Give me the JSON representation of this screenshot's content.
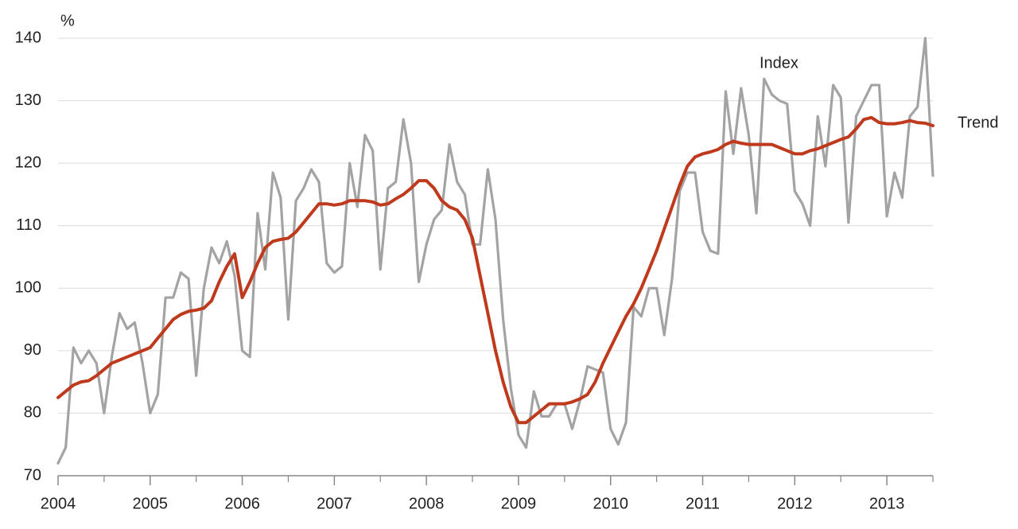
{
  "chart_data": {
    "type": "line",
    "y_unit": "%",
    "x": [
      2004,
      2004.083,
      2004.167,
      2004.25,
      2004.333,
      2004.417,
      2004.5,
      2004.583,
      2004.667,
      2004.75,
      2004.833,
      2004.917,
      2005,
      2005.083,
      2005.167,
      2005.25,
      2005.333,
      2005.417,
      2005.5,
      2005.583,
      2005.667,
      2005.75,
      2005.833,
      2005.917,
      2006,
      2006.083,
      2006.167,
      2006.25,
      2006.333,
      2006.417,
      2006.5,
      2006.583,
      2006.667,
      2006.75,
      2006.833,
      2006.917,
      2007,
      2007.083,
      2007.167,
      2007.25,
      2007.333,
      2007.417,
      2007.5,
      2007.583,
      2007.667,
      2007.75,
      2007.833,
      2007.917,
      2008,
      2008.083,
      2008.167,
      2008.25,
      2008.333,
      2008.417,
      2008.5,
      2008.583,
      2008.667,
      2008.75,
      2008.833,
      2008.917,
      2009,
      2009.083,
      2009.167,
      2009.25,
      2009.333,
      2009.417,
      2009.5,
      2009.583,
      2009.667,
      2009.75,
      2009.833,
      2009.917,
      2010,
      2010.083,
      2010.167,
      2010.25,
      2010.333,
      2010.417,
      2010.5,
      2010.583,
      2010.667,
      2010.75,
      2010.833,
      2010.917,
      2011,
      2011.083,
      2011.167,
      2011.25,
      2011.333,
      2011.417,
      2011.5,
      2011.583,
      2011.667,
      2011.75,
      2011.833,
      2011.917,
      2012,
      2012.083,
      2012.167,
      2012.25,
      2012.333,
      2012.417,
      2012.5,
      2012.583,
      2012.667,
      2012.75,
      2012.833,
      2012.917,
      2013,
      2013.083,
      2013.167,
      2013.25,
      2013.333,
      2013.417,
      2013.5
    ],
    "series": [
      {
        "name": "Index",
        "color": "#a3a3a3",
        "values": [
          72,
          74.5,
          90.5,
          88,
          90,
          88,
          80,
          89,
          96,
          93.5,
          94.5,
          88,
          80,
          83,
          98.5,
          98.5,
          102.5,
          101.5,
          86,
          100,
          106.5,
          104,
          107.5,
          102,
          90,
          89,
          112,
          103,
          118.5,
          114.5,
          95,
          114,
          116,
          119,
          117,
          104,
          102.5,
          103.5,
          120,
          113,
          124.5,
          122,
          103,
          116,
          117,
          127,
          120,
          101,
          107,
          111,
          112.5,
          123,
          117,
          115,
          107,
          107,
          119,
          111,
          95,
          84,
          76.5,
          74.5,
          83.5,
          79.5,
          79.5,
          81.5,
          81.5,
          77.5,
          82,
          87.5,
          87,
          86.5,
          77.5,
          75,
          78.5,
          97,
          95.5,
          100,
          100,
          92.5,
          101.5,
          115.5,
          118.5,
          118.5,
          109,
          106,
          105.5,
          131.5,
          121.5,
          132,
          124.5,
          112,
          133.5,
          131,
          130,
          129.5,
          115.5,
          113.5,
          110,
          127.5,
          119.5,
          132.5,
          130.5,
          110.5,
          127.5,
          130,
          132.5,
          132.5,
          111.5,
          118.5,
          114.5,
          127.5,
          129,
          140,
          118
        ]
      },
      {
        "name": "Trend",
        "color": "#bf3a1c",
        "values": [
          82.5,
          83.5,
          84.5,
          85,
          85.2,
          86,
          87,
          88,
          88.5,
          89,
          89.5,
          90,
          90.5,
          92,
          93.5,
          95,
          95.8,
          96.3,
          96.5,
          96.8,
          98,
          101,
          103.5,
          105.5,
          98.5,
          101,
          104,
          106.5,
          107.5,
          107.8,
          108,
          109,
          110.5,
          112,
          113.5,
          113.5,
          113.3,
          113.5,
          114,
          114,
          114,
          113.8,
          113.3,
          113.5,
          114.3,
          115,
          116,
          117.2,
          117.2,
          116,
          114,
          113,
          112.5,
          111,
          108,
          102,
          96,
          90,
          85,
          81,
          78.5,
          78.5,
          79.5,
          80.5,
          81.5,
          81.5,
          81.5,
          81.8,
          82.3,
          83,
          85,
          88,
          90.5,
          93,
          95.5,
          97.5,
          100,
          103,
          106,
          109.5,
          113,
          116.5,
          119.5,
          121,
          121.5,
          121.8,
          122.2,
          123,
          123.5,
          123.2,
          123,
          123,
          123,
          123,
          122.5,
          122,
          121.5,
          121.5,
          122,
          122.3,
          122.8,
          123.3,
          123.8,
          124.2,
          125.5,
          127,
          127.3,
          126.5,
          126.3,
          126.3,
          126.5,
          126.8,
          126.5,
          126.4,
          126
        ]
      }
    ],
    "xlim": [
      2004,
      2013.5
    ],
    "xticks": [
      2004,
      2005,
      2006,
      2007,
      2008,
      2009,
      2010,
      2011,
      2012,
      2013
    ],
    "xminorticks": [
      2004.5,
      2005.5,
      2006.5,
      2007.5,
      2008.5,
      2009.5,
      2010.5,
      2011.5,
      2012.5,
      2013.5
    ],
    "ylim": [
      70,
      140
    ],
    "yticks": [
      70,
      80,
      90,
      100,
      110,
      120,
      130,
      140
    ],
    "grid": true
  }
}
